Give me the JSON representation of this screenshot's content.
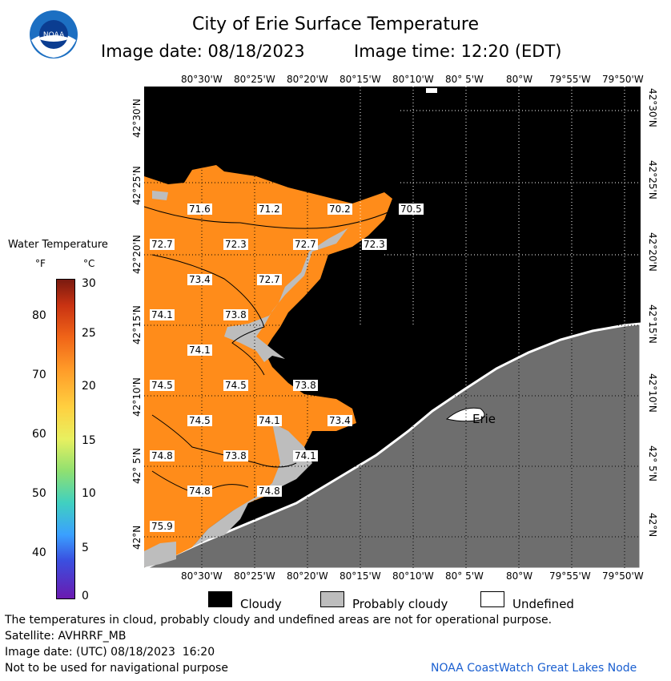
{
  "header": {
    "title": "City of Erie Surface Temperature",
    "subtitle_date": "Image date: 08/18/2023",
    "subtitle_time": "Image time: 12:20 (EDT)"
  },
  "logo": {
    "text": "NOAA",
    "icon": "noaa-logo-icon"
  },
  "map": {
    "lon_ticks": [
      "80°30'W",
      "80°25'W",
      "80°20'W",
      "80°15'W",
      "80°10'W",
      "80° 5'W",
      "80°W",
      "79°55'W",
      "79°50'W"
    ],
    "lat_ticks": [
      "42°30'N",
      "42°25'N",
      "42°20'N",
      "42°15'N",
      "42°10'N",
      "42° 5'N",
      "42°N"
    ],
    "city_label": "Erie",
    "temp_labels": [
      "71.6",
      "71.2",
      "70.2",
      "70.5",
      "72.7",
      "72.3",
      "72.7",
      "72.3",
      "73.4",
      "72.7",
      "74.1",
      "73.8",
      "74.1",
      "74.5",
      "74.5",
      "73.8",
      "74.5",
      "74.1",
      "73.4",
      "74.8",
      "73.8",
      "74.1",
      "74.8",
      "74.8",
      "75.9"
    ],
    "colors": {
      "land": "#6e6e6e",
      "cloud": "#000000",
      "probably_cloudy": "#bdbdbd",
      "water": "#ff8c1a"
    }
  },
  "colorbar": {
    "title": "Water Temperature",
    "unit_f": "°F",
    "unit_c": "°C",
    "f_ticks": [
      "80",
      "70",
      "60",
      "50",
      "40"
    ],
    "c_ticks": [
      "30",
      "25",
      "20",
      "15",
      "10",
      "5",
      "0"
    ]
  },
  "legend": {
    "cloudy": "Cloudy",
    "probably_cloudy": "Probably cloudy",
    "undefined": "Undefined"
  },
  "footer": {
    "disclaimer": "The temperatures in cloud, probably cloudy and undefined areas are not for operational purpose.",
    "satellite": "Satellite: AVHRRF_MB",
    "utc": "Image date: (UTC) 08/18/2023  16:20",
    "nav": "Not to be used for navigational purpose",
    "credit": "NOAA CoastWatch Great Lakes Node"
  }
}
